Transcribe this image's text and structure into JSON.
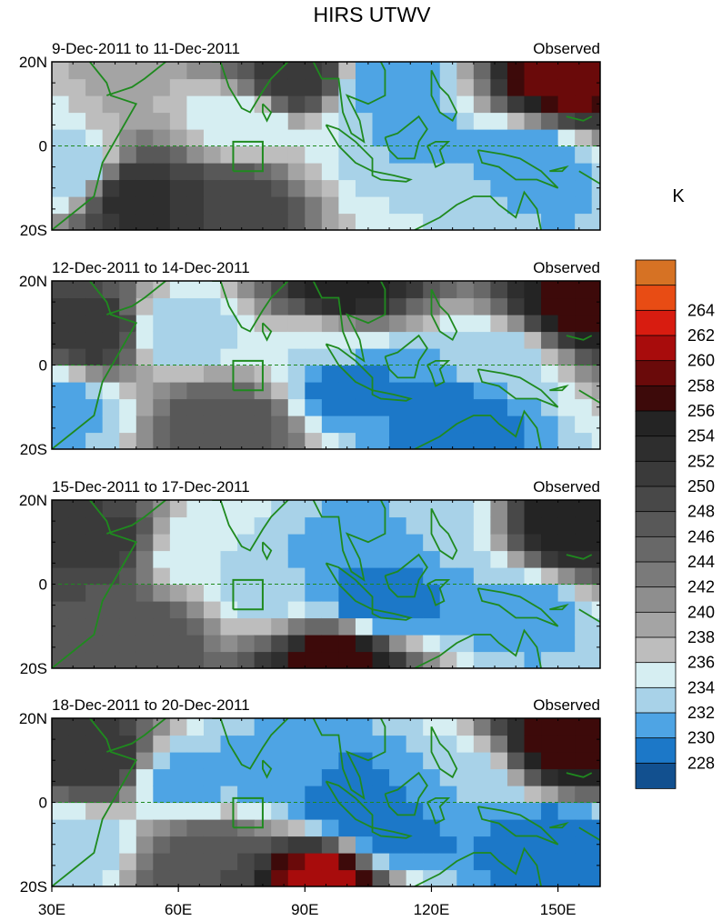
{
  "figure": {
    "title": "HIRS UTWV",
    "unit_label": "K"
  },
  "colors": {
    "coast": "#1f8a1f",
    "frame": "#000000",
    "levels": [
      "#14146e",
      "#12508f",
      "#1c78c8",
      "#4ea4e4",
      "#a8d2e8",
      "#d6eef2",
      "#bdbdbd",
      "#a4a4a4",
      "#8e8e8e",
      "#7a7a7a",
      "#686868",
      "#585858",
      "#484848",
      "#3a3a3a",
      "#2e2e2e",
      "#242424",
      "#3d0a0a",
      "#6a0a0a",
      "#a80c0c",
      "#d81c10",
      "#e84c14",
      "#d67224"
    ]
  },
  "chart_data": {
    "type": "heatmap",
    "variable": "HIRS UTWV",
    "units": "K",
    "x_ticks": [
      "30E",
      "60E",
      "90E",
      "120E",
      "150E"
    ],
    "x_tick_values": [
      30,
      60,
      90,
      120,
      150
    ],
    "xlim": [
      30,
      160
    ],
    "y_ticks": [
      "20N",
      "0",
      "20S"
    ],
    "y_tick_values": [
      20,
      0,
      -20
    ],
    "ylim": [
      -20,
      20
    ],
    "colorbar": {
      "labels": [
        "228",
        "230",
        "232",
        "234",
        "236",
        "238",
        "240",
        "242",
        "244",
        "246",
        "248",
        "250",
        "252",
        "254",
        "256",
        "258",
        "260",
        "262",
        "264"
      ],
      "levels": [
        228,
        230,
        232,
        234,
        236,
        238,
        240,
        242,
        244,
        246,
        248,
        250,
        252,
        254,
        256,
        258,
        260,
        262,
        264
      ]
    },
    "panels": [
      {
        "period": "9-Dec-2011 to 11-Dec-2011",
        "label": "Observed",
        "features": [
          {
            "lon": 102,
            "lat": 2,
            "value": 236
          },
          {
            "lon": 112,
            "lat": 2,
            "value": 233
          },
          {
            "lon": 142,
            "lat": -4,
            "value": 232
          },
          {
            "lon": 108,
            "lat": 14,
            "value": 232
          },
          {
            "lon": 33,
            "lat": -6,
            "value": 234
          },
          {
            "lon": 75,
            "lat": 6,
            "value": 236
          },
          {
            "lon": 120,
            "lat": -14,
            "value": 236
          },
          {
            "lon": 152,
            "lat": 16,
            "value": 261
          },
          {
            "lon": 50,
            "lat": -12,
            "value": 255
          },
          {
            "lon": 88,
            "lat": 16,
            "value": 254
          },
          {
            "lon": 72,
            "lat": -14,
            "value": 252
          }
        ]
      },
      {
        "period": "12-Dec-2011 to 14-Dec-2011",
        "label": "Observed",
        "features": [
          {
            "lon": 96,
            "lat": 4,
            "value": 236
          },
          {
            "lon": 110,
            "lat": -4,
            "value": 232
          },
          {
            "lon": 126,
            "lat": -12,
            "value": 231
          },
          {
            "lon": 100,
            "lat": -4,
            "value": 231
          },
          {
            "lon": 60,
            "lat": 8,
            "value": 234
          },
          {
            "lon": 136,
            "lat": 2,
            "value": 235
          },
          {
            "lon": 32,
            "lat": -10,
            "value": 233
          },
          {
            "lon": 154,
            "lat": 14,
            "value": 259
          },
          {
            "lon": 100,
            "lat": 18,
            "value": 257
          },
          {
            "lon": 40,
            "lat": 8,
            "value": 254
          },
          {
            "lon": 72,
            "lat": -14,
            "value": 250
          }
        ]
      },
      {
        "period": "15-Dec-2011 to 17-Dec-2011",
        "label": "Observed",
        "features": [
          {
            "lon": 100,
            "lat": 2,
            "value": 232
          },
          {
            "lon": 108,
            "lat": -4,
            "value": 230
          },
          {
            "lon": 112,
            "lat": 8,
            "value": 232
          },
          {
            "lon": 140,
            "lat": -6,
            "value": 233
          },
          {
            "lon": 80,
            "lat": 0,
            "value": 235
          },
          {
            "lon": 64,
            "lat": 8,
            "value": 236
          },
          {
            "lon": 120,
            "lat": 12,
            "value": 235
          },
          {
            "lon": 98,
            "lat": -18,
            "value": 260
          },
          {
            "lon": 154,
            "lat": 14,
            "value": 258
          },
          {
            "lon": 42,
            "lat": 10,
            "value": 253
          },
          {
            "lon": 50,
            "lat": -12,
            "value": 250
          }
        ]
      },
      {
        "period": "18-Dec-2011 to 20-Dec-2011",
        "label": "Observed",
        "features": [
          {
            "lon": 100,
            "lat": 0,
            "value": 230
          },
          {
            "lon": 112,
            "lat": -8,
            "value": 231
          },
          {
            "lon": 148,
            "lat": -10,
            "value": 230
          },
          {
            "lon": 84,
            "lat": 8,
            "value": 233
          },
          {
            "lon": 60,
            "lat": 6,
            "value": 233
          },
          {
            "lon": 126,
            "lat": 4,
            "value": 234
          },
          {
            "lon": 35,
            "lat": -10,
            "value": 234
          },
          {
            "lon": 94,
            "lat": -18,
            "value": 263
          },
          {
            "lon": 154,
            "lat": 14,
            "value": 260
          },
          {
            "lon": 42,
            "lat": 10,
            "value": 254
          },
          {
            "lon": 66,
            "lat": -14,
            "value": 250
          }
        ]
      }
    ]
  }
}
